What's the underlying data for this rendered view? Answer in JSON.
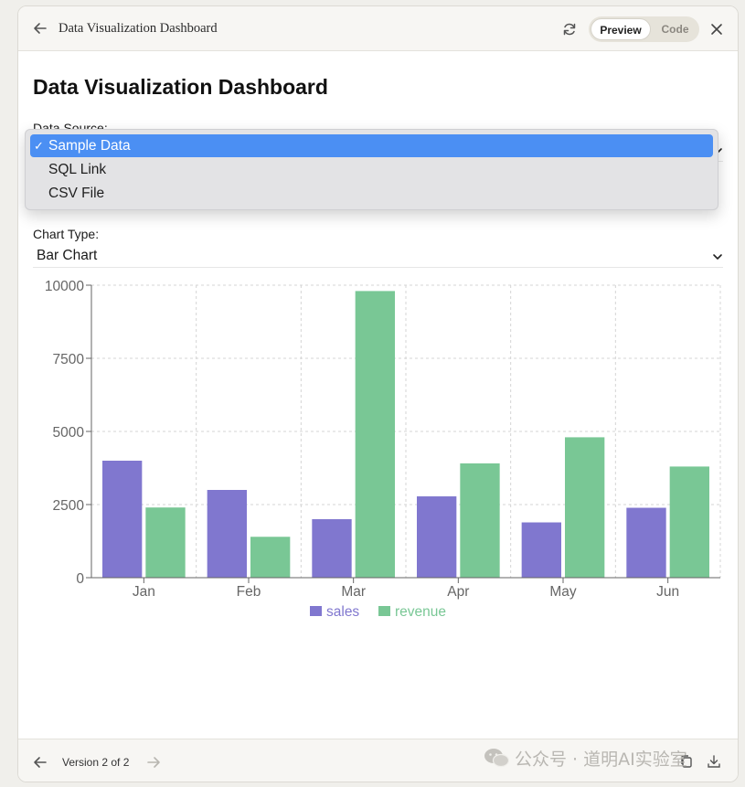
{
  "window": {
    "title": "Data Visualization Dashboard",
    "toggle": {
      "preview_label": "Preview",
      "code_label": "Code",
      "active": "Preview"
    }
  },
  "page": {
    "title": "Data Visualization Dashboard",
    "data_source": {
      "label": "Data Source:",
      "selected": "Sample Data",
      "options": [
        "Sample Data",
        "SQL Link",
        "CSV File"
      ]
    },
    "chart_type": {
      "label": "Chart Type:",
      "selected": "Bar Chart"
    }
  },
  "footer": {
    "version_label": "Version 2 of 2"
  },
  "watermark": {
    "text": "公众号 · 道明AI实验室"
  },
  "icons": {
    "back": "arrow-left-icon",
    "refresh": "refresh-icon",
    "close": "close-icon",
    "chevron": "chevron-down-icon",
    "prev": "arrow-left-icon",
    "next": "arrow-right-icon",
    "copy": "copy-icon",
    "download": "download-icon",
    "wechat": "wechat-icon"
  },
  "chart_data": {
    "type": "bar",
    "categories": [
      "Jan",
      "Feb",
      "Mar",
      "Apr",
      "May",
      "Jun"
    ],
    "series": [
      {
        "name": "sales",
        "color": "#8077cf",
        "values": [
          4000,
          3000,
          2000,
          2780,
          1890,
          2390
        ]
      },
      {
        "name": "revenue",
        "color": "#79c795",
        "values": [
          2400,
          1398,
          9800,
          3908,
          4800,
          3800
        ]
      }
    ],
    "y_ticks": [
      0,
      2500,
      5000,
      7500,
      10000
    ],
    "ylim": [
      0,
      10000
    ],
    "grid": true,
    "legend_position": "bottom-center"
  }
}
